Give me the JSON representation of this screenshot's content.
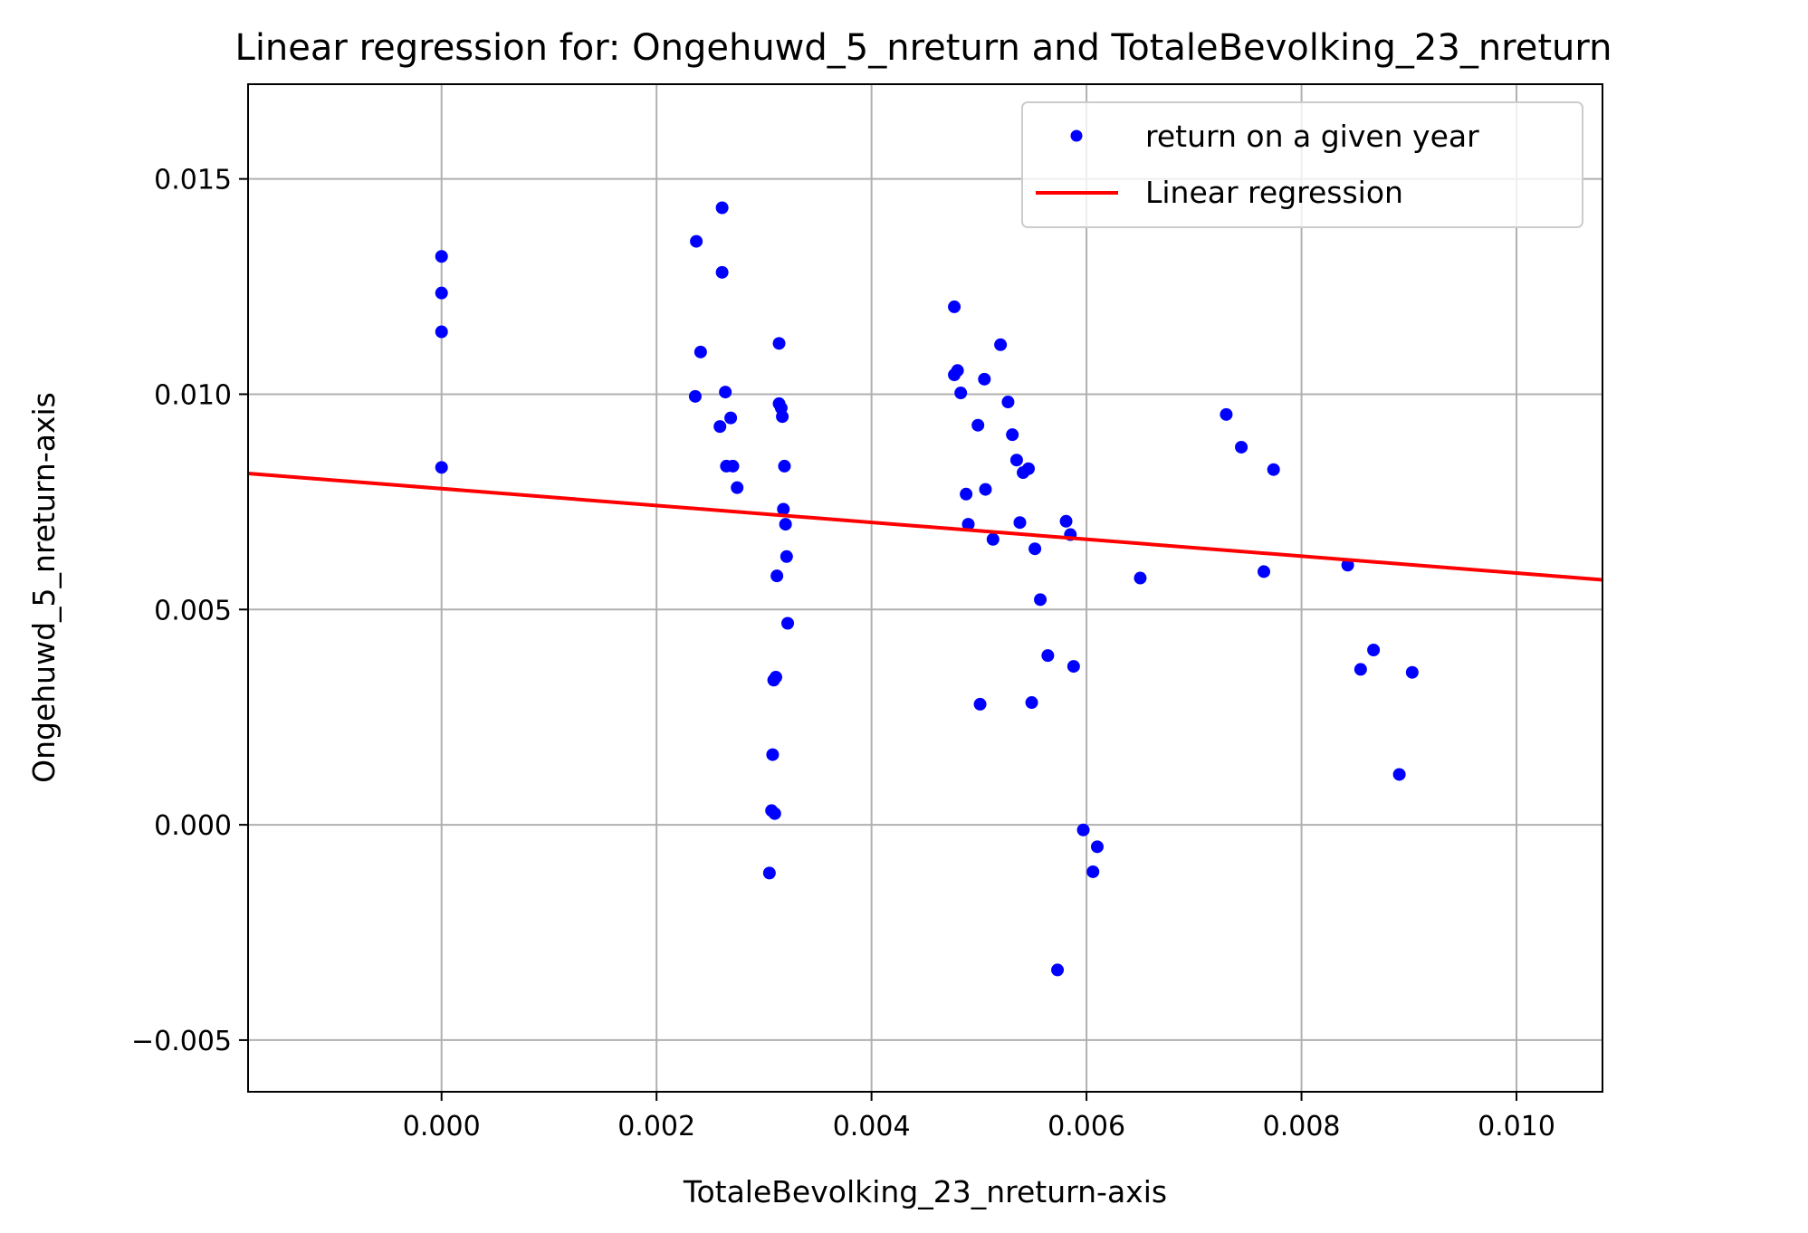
{
  "chart_data": {
    "type": "scatter",
    "title": "Linear regression for: Ongehuwd_5_nreturn and TotaleBevolking_23_nreturn",
    "xlabel": "TotaleBevolking_23_nreturn-axis",
    "ylabel": "Ongehuwd_5_nreturn-axis",
    "xlim": [
      -0.0018,
      0.0108
    ],
    "ylim": [
      -0.0062,
      0.0172
    ],
    "xticks": [
      0.0,
      0.002,
      0.004,
      0.006,
      0.008,
      0.01
    ],
    "xtick_labels": [
      "0.000",
      "0.002",
      "0.004",
      "0.006",
      "0.008",
      "0.010"
    ],
    "yticks": [
      -0.005,
      0.0,
      0.005,
      0.01,
      0.015
    ],
    "ytick_labels": [
      "−0.005",
      "0.000",
      "0.005",
      "0.010",
      "0.015"
    ],
    "grid": true,
    "legend_position": "top-right",
    "series": [
      {
        "name": "return on a given year",
        "kind": "scatter",
        "color": "#0000ff",
        "points": [
          [
            0.0,
            0.0132
          ],
          [
            0.0,
            0.01235
          ],
          [
            0.0,
            0.01145
          ],
          [
            0.0,
            0.0083
          ],
          [
            0.00237,
            0.01355
          ],
          [
            0.00261,
            0.01433
          ],
          [
            0.00261,
            0.01283
          ],
          [
            0.00241,
            0.01098
          ],
          [
            0.00236,
            0.00995
          ],
          [
            0.00264,
            0.01005
          ],
          [
            0.00259,
            0.00925
          ],
          [
            0.00269,
            0.00945
          ],
          [
            0.00265,
            0.00833
          ],
          [
            0.00271,
            0.00833
          ],
          [
            0.00275,
            0.00783
          ],
          [
            0.00314,
            0.01118
          ],
          [
            0.00314,
            0.00978
          ],
          [
            0.00316,
            0.00968
          ],
          [
            0.00317,
            0.00948
          ],
          [
            0.00319,
            0.00833
          ],
          [
            0.00318,
            0.00733
          ],
          [
            0.0032,
            0.00698
          ],
          [
            0.00321,
            0.00623
          ],
          [
            0.00312,
            0.00578
          ],
          [
            0.00322,
            0.00468
          ],
          [
            0.00311,
            0.00343
          ],
          [
            0.00309,
            0.00336
          ],
          [
            0.00308,
            0.00163
          ],
          [
            0.00307,
            0.00033
          ],
          [
            0.0031,
            0.00026
          ],
          [
            0.00305,
            -0.00112
          ],
          [
            0.00477,
            0.01203
          ],
          [
            0.00477,
            0.01045
          ],
          [
            0.0048,
            0.01055
          ],
          [
            0.00483,
            0.01003
          ],
          [
            0.00505,
            0.01035
          ],
          [
            0.0052,
            0.01115
          ],
          [
            0.00527,
            0.00982
          ],
          [
            0.00499,
            0.00928
          ],
          [
            0.00531,
            0.00906
          ],
          [
            0.00535,
            0.00847
          ],
          [
            0.00541,
            0.00818
          ],
          [
            0.00546,
            0.00827
          ],
          [
            0.00488,
            0.00768
          ],
          [
            0.00506,
            0.00779
          ],
          [
            0.0049,
            0.00698
          ],
          [
            0.00538,
            0.00702
          ],
          [
            0.00513,
            0.00663
          ],
          [
            0.00581,
            0.00705
          ],
          [
            0.00585,
            0.00674
          ],
          [
            0.00552,
            0.00641
          ],
          [
            0.00557,
            0.00523
          ],
          [
            0.00564,
            0.00393
          ],
          [
            0.00588,
            0.00368
          ],
          [
            0.00501,
            0.0028
          ],
          [
            0.00549,
            0.00284
          ],
          [
            0.0065,
            0.00573
          ],
          [
            0.00597,
            -0.00012
          ],
          [
            0.0061,
            -0.00051
          ],
          [
            0.00606,
            -0.00109
          ],
          [
            0.00573,
            -0.00337
          ],
          [
            0.0073,
            0.00953
          ],
          [
            0.00744,
            0.00877
          ],
          [
            0.00774,
            0.00825
          ],
          [
            0.00765,
            0.00588
          ],
          [
            0.00843,
            0.00603
          ],
          [
            0.00855,
            0.00361
          ],
          [
            0.00867,
            0.00406
          ],
          [
            0.00903,
            0.00354
          ],
          [
            0.00891,
            0.00117
          ]
        ]
      },
      {
        "name": "Linear regression",
        "kind": "line",
        "color": "#ff0000",
        "points": [
          [
            -0.0018,
            0.00816
          ],
          [
            0.0108,
            0.00569
          ]
        ]
      }
    ]
  }
}
